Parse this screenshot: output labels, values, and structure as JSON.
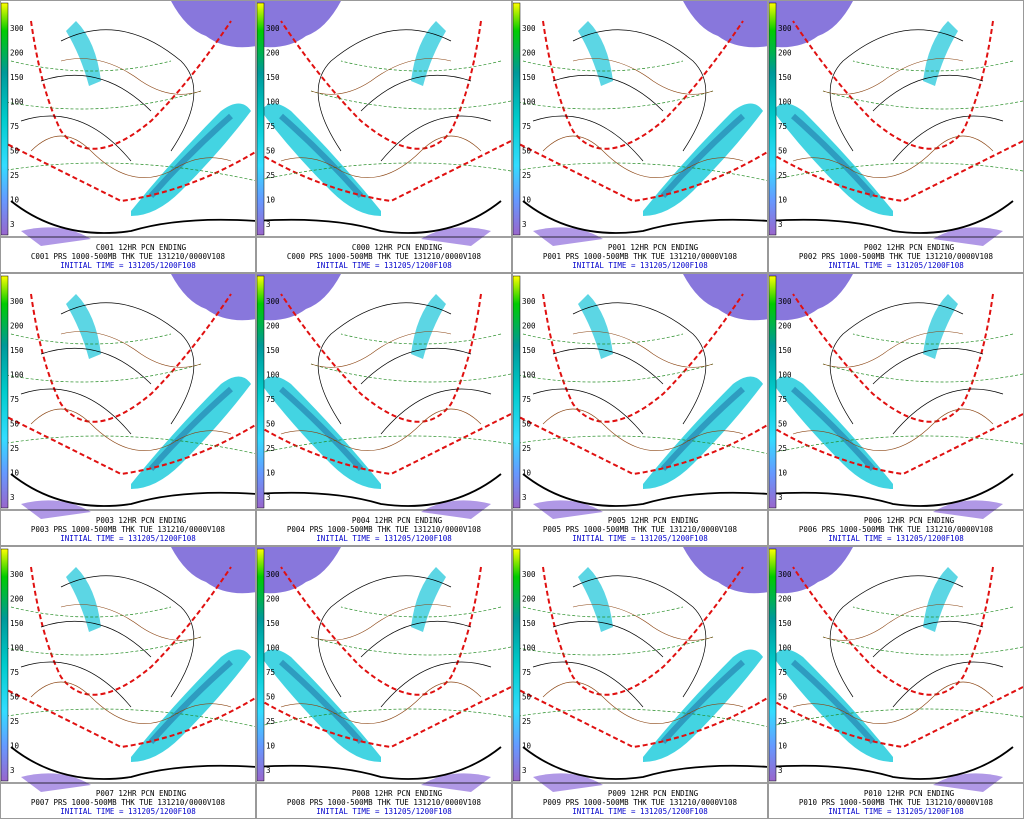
{
  "colorbar": {
    "labels": [
      "300",
      "200",
      "150",
      "100",
      "75",
      "50",
      "25",
      "10",
      "3"
    ]
  },
  "panels": [
    {
      "title": "C001 12HR PCN ENDING",
      "subtitle": "C001 PRS 1000-500MB THK TUE 131210/0000V108",
      "init": "INITIAL TIME = 131205/1200F108"
    },
    {
      "title": "C000 12HR PCN ENDING",
      "subtitle": "C000 PRS 1000-500MB THK TUE 131210/0000V108",
      "init": "INITIAL TIME = 131205/1200F108"
    },
    {
      "title": "P001 12HR PCN ENDING",
      "subtitle": "P001 PRS 1000-500MB THK TUE 131210/0000V108",
      "init": "INITIAL TIME = 131205/1200F108"
    },
    {
      "title": "P002 12HR PCN ENDING",
      "subtitle": "P002 PRS 1000-500MB THK TUE 131210/0000V108",
      "init": "INITIAL TIME = 131205/1200F108"
    },
    {
      "title": "P003 12HR PCN ENDING",
      "subtitle": "P003 PRS 1000-500MB THK TUE 131210/0000V108",
      "init": "INITIAL TIME = 131205/1200F108"
    },
    {
      "title": "P004 12HR PCN ENDING",
      "subtitle": "P004 PRS 1000-500MB THK TUE 131210/0000V108",
      "init": "INITIAL TIME = 131205/1200F108"
    },
    {
      "title": "P005 12HR PCN ENDING",
      "subtitle": "P005 PRS 1000-500MB THK TUE 131210/0000V108",
      "init": "INITIAL TIME = 131205/1200F108"
    },
    {
      "title": "P006 12HR PCN ENDING",
      "subtitle": "P006 PRS 1000-500MB THK TUE 131210/0000V108",
      "init": "INITIAL TIME = 131205/1200F108"
    },
    {
      "title": "P007 12HR PCN ENDING",
      "subtitle": "P007 PRS 1000-500MB THK TUE 131210/0000V108",
      "init": "INITIAL TIME = 131205/1200F108"
    },
    {
      "title": "P008 12HR PCN ENDING",
      "subtitle": "P008 PRS 1000-500MB THK TUE 131210/0000V108",
      "init": "INITIAL TIME = 131205/1200F108"
    },
    {
      "title": "P009 12HR PCN ENDING",
      "subtitle": "P009 PRS 1000-500MB THK TUE 131210/0000V108",
      "init": "INITIAL TIME = 131205/1200F108"
    },
    {
      "title": "P010 12HR PCN ENDING",
      "subtitle": "P010 PRS 1000-500MB THK TUE 131210/0000V108",
      "init": "INITIAL TIME = 131205/1200F108"
    }
  ]
}
